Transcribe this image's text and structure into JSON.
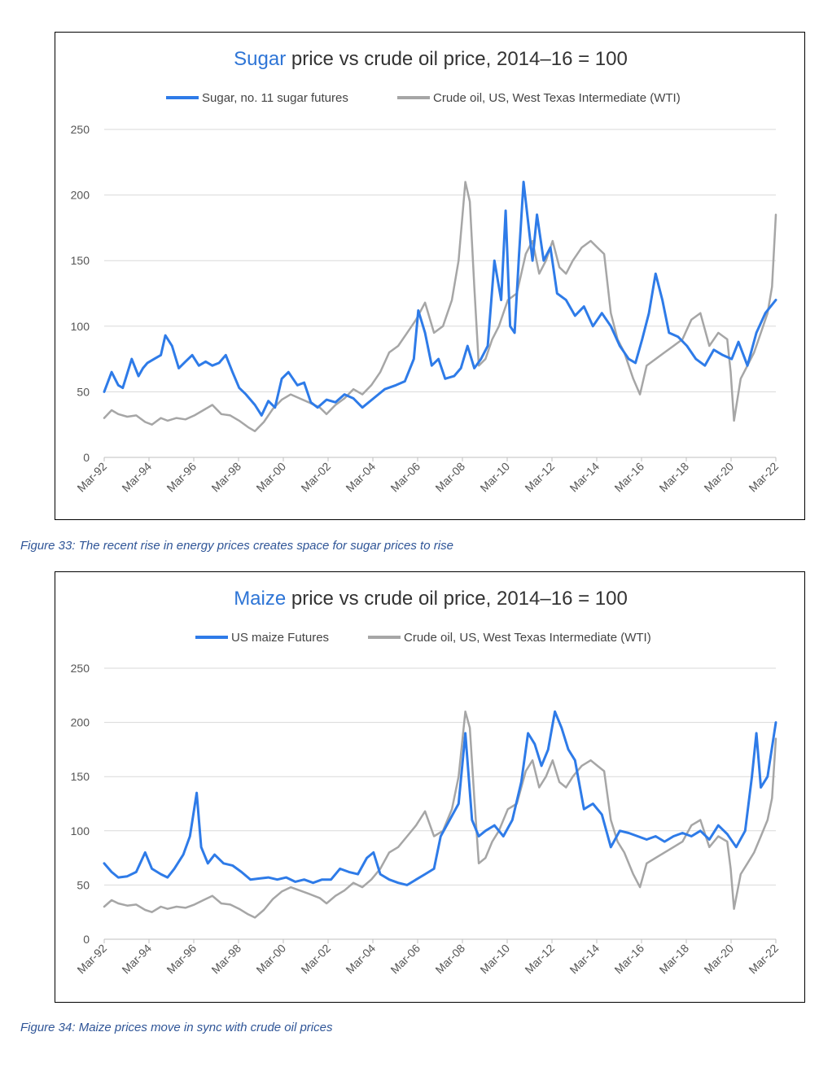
{
  "chart_data": [
    {
      "type": "line",
      "title_highlight": "Sugar",
      "title_rest": " price vs crude oil price, 2014–16 = 100",
      "ylim": [
        0,
        250
      ],
      "yticks": [
        0,
        50,
        100,
        150,
        200,
        250
      ],
      "xlim": [
        1992.17,
        2022.17
      ],
      "xticks": [
        "Mar-92",
        "Mar-94",
        "Mar-96",
        "Mar-98",
        "Mar-00",
        "Mar-02",
        "Mar-04",
        "Mar-06",
        "Mar-08",
        "Mar-10",
        "Mar-12",
        "Mar-14",
        "Mar-16",
        "Mar-18",
        "Mar-20",
        "Mar-22"
      ],
      "grid": true,
      "legend_position": "top",
      "series": [
        {
          "name": "Sugar, no. 11 sugar futures",
          "color": "#2e7be8",
          "x": [
            1992.17,
            1992.5,
            1992.8,
            1993.0,
            1993.4,
            1993.7,
            1993.9,
            1994.1,
            1994.4,
            1994.7,
            1994.9,
            1995.2,
            1995.5,
            1995.8,
            1996.1,
            1996.4,
            1996.7,
            1997.0,
            1997.3,
            1997.6,
            1997.9,
            1998.2,
            1998.5,
            1998.9,
            1999.2,
            1999.5,
            1999.8,
            2000.1,
            2000.4,
            2000.8,
            2001.1,
            2001.4,
            2001.7,
            2002.1,
            2002.5,
            2002.9,
            2003.3,
            2003.7,
            2004.2,
            2004.7,
            2005.2,
            2005.6,
            2006.0,
            2006.2,
            2006.5,
            2006.8,
            2007.1,
            2007.4,
            2007.8,
            2008.1,
            2008.4,
            2008.7,
            2009.0,
            2009.3,
            2009.6,
            2009.9,
            2010.1,
            2010.3,
            2010.5,
            2010.7,
            2010.9,
            2011.1,
            2011.3,
            2011.5,
            2011.8,
            2012.1,
            2012.4,
            2012.8,
            2013.2,
            2013.6,
            2014.0,
            2014.4,
            2014.8,
            2015.2,
            2015.6,
            2015.9,
            2016.2,
            2016.5,
            2016.8,
            2017.1,
            2017.4,
            2017.8,
            2018.2,
            2018.6,
            2019.0,
            2019.4,
            2019.8,
            2020.2,
            2020.5,
            2020.9,
            2021.3,
            2021.7,
            2022.17
          ],
          "values": [
            50,
            65,
            55,
            53,
            75,
            62,
            68,
            72,
            75,
            78,
            93,
            85,
            68,
            73,
            78,
            70,
            73,
            70,
            72,
            78,
            65,
            53,
            48,
            40,
            32,
            43,
            38,
            60,
            65,
            55,
            57,
            42,
            38,
            44,
            42,
            48,
            45,
            38,
            45,
            52,
            55,
            58,
            75,
            112,
            95,
            70,
            75,
            60,
            62,
            68,
            85,
            68,
            75,
            85,
            150,
            120,
            188,
            100,
            95,
            155,
            210,
            180,
            150,
            185,
            150,
            160,
            125,
            120,
            108,
            115,
            100,
            110,
            100,
            85,
            75,
            72,
            90,
            110,
            140,
            120,
            95,
            92,
            85,
            75,
            70,
            82,
            78,
            75,
            88,
            70,
            95,
            110,
            120
          ]
        },
        {
          "name": "Crude oil, US, West Texas Intermediate (WTI)",
          "color": "#a6a6a6",
          "x": [
            1992.17,
            1992.5,
            1992.8,
            1993.2,
            1993.6,
            1994.0,
            1994.3,
            1994.7,
            1995.0,
            1995.4,
            1995.8,
            1996.2,
            1996.6,
            1997.0,
            1997.4,
            1997.8,
            1998.2,
            1998.6,
            1998.9,
            1999.3,
            1999.7,
            2000.1,
            2000.5,
            2000.9,
            2001.3,
            2001.8,
            2002.1,
            2002.5,
            2002.9,
            2003.3,
            2003.7,
            2004.1,
            2004.5,
            2004.9,
            2005.3,
            2005.7,
            2006.1,
            2006.5,
            2006.9,
            2007.3,
            2007.7,
            2008.0,
            2008.3,
            2008.5,
            2008.7,
            2008.9,
            2009.2,
            2009.5,
            2009.8,
            2010.2,
            2010.6,
            2011.0,
            2011.3,
            2011.6,
            2011.9,
            2012.2,
            2012.5,
            2012.8,
            2013.1,
            2013.5,
            2013.9,
            2014.2,
            2014.5,
            2014.8,
            2015.1,
            2015.4,
            2015.8,
            2016.1,
            2016.4,
            2016.8,
            2017.2,
            2017.6,
            2018.0,
            2018.4,
            2018.8,
            2019.2,
            2019.6,
            2020.0,
            2020.15,
            2020.3,
            2020.6,
            2020.9,
            2021.2,
            2021.5,
            2021.8,
            2022.0,
            2022.17
          ],
          "values": [
            30,
            36,
            33,
            31,
            32,
            27,
            25,
            30,
            28,
            30,
            29,
            32,
            36,
            40,
            33,
            32,
            28,
            23,
            20,
            27,
            37,
            44,
            48,
            45,
            42,
            38,
            33,
            40,
            45,
            52,
            48,
            55,
            65,
            80,
            85,
            95,
            105,
            118,
            95,
            100,
            120,
            150,
            210,
            195,
            130,
            70,
            75,
            90,
            100,
            120,
            125,
            155,
            165,
            140,
            150,
            165,
            145,
            140,
            150,
            160,
            165,
            160,
            155,
            110,
            90,
            80,
            60,
            48,
            70,
            75,
            80,
            85,
            90,
            105,
            110,
            85,
            95,
            90,
            65,
            28,
            60,
            70,
            80,
            95,
            110,
            130,
            185
          ]
        }
      ]
    },
    {
      "type": "line",
      "title_highlight": "Maize",
      "title_rest": " price vs crude oil price, 2014–16 = 100",
      "ylim": [
        0,
        250
      ],
      "yticks": [
        0,
        50,
        100,
        150,
        200,
        250
      ],
      "xlim": [
        1992.17,
        2022.17
      ],
      "xticks": [
        "Mar-92",
        "Mar-94",
        "Mar-96",
        "Mar-98",
        "Mar-00",
        "Mar-02",
        "Mar-04",
        "Mar-06",
        "Mar-08",
        "Mar-10",
        "Mar-12",
        "Mar-14",
        "Mar-16",
        "Mar-18",
        "Mar-20",
        "Mar-22"
      ],
      "grid": true,
      "legend_position": "top",
      "series": [
        {
          "name": "US maize Futures",
          "color": "#2e7be8",
          "x": [
            1992.17,
            1992.5,
            1992.8,
            1993.2,
            1993.6,
            1994.0,
            1994.3,
            1994.7,
            1995.0,
            1995.3,
            1995.7,
            1996.0,
            1996.3,
            1996.5,
            1996.8,
            1997.1,
            1997.5,
            1997.9,
            1998.3,
            1998.7,
            1999.1,
            1999.5,
            1999.9,
            2000.3,
            2000.7,
            2001.1,
            2001.5,
            2001.9,
            2002.3,
            2002.7,
            2003.1,
            2003.5,
            2003.9,
            2004.2,
            2004.5,
            2004.9,
            2005.3,
            2005.7,
            2006.1,
            2006.5,
            2006.9,
            2007.2,
            2007.6,
            2008.0,
            2008.3,
            2008.6,
            2008.9,
            2009.2,
            2009.6,
            2010.0,
            2010.4,
            2010.8,
            2011.1,
            2011.4,
            2011.7,
            2012.0,
            2012.3,
            2012.6,
            2012.9,
            2013.2,
            2013.6,
            2014.0,
            2014.4,
            2014.8,
            2015.2,
            2015.6,
            2016.0,
            2016.4,
            2016.8,
            2017.2,
            2017.6,
            2018.0,
            2018.4,
            2018.8,
            2019.2,
            2019.6,
            2020.0,
            2020.4,
            2020.8,
            2021.1,
            2021.3,
            2021.5,
            2021.8,
            2022.17
          ],
          "values": [
            70,
            62,
            57,
            58,
            62,
            80,
            65,
            60,
            57,
            65,
            78,
            95,
            135,
            85,
            70,
            78,
            70,
            68,
            62,
            55,
            56,
            57,
            55,
            57,
            53,
            55,
            52,
            55,
            55,
            65,
            62,
            60,
            75,
            80,
            60,
            55,
            52,
            50,
            55,
            60,
            65,
            95,
            110,
            125,
            190,
            110,
            95,
            100,
            105,
            95,
            110,
            145,
            190,
            180,
            160,
            175,
            210,
            195,
            175,
            165,
            120,
            125,
            115,
            85,
            100,
            98,
            95,
            92,
            95,
            90,
            95,
            98,
            95,
            100,
            92,
            105,
            97,
            85,
            100,
            150,
            190,
            140,
            150,
            200
          ]
        },
        {
          "name": "Crude oil, US, West Texas Intermediate (WTI)",
          "color": "#a6a6a6",
          "x": [
            1992.17,
            1992.5,
            1992.8,
            1993.2,
            1993.6,
            1994.0,
            1994.3,
            1994.7,
            1995.0,
            1995.4,
            1995.8,
            1996.2,
            1996.6,
            1997.0,
            1997.4,
            1997.8,
            1998.2,
            1998.6,
            1998.9,
            1999.3,
            1999.7,
            2000.1,
            2000.5,
            2000.9,
            2001.3,
            2001.8,
            2002.1,
            2002.5,
            2002.9,
            2003.3,
            2003.7,
            2004.1,
            2004.5,
            2004.9,
            2005.3,
            2005.7,
            2006.1,
            2006.5,
            2006.9,
            2007.3,
            2007.7,
            2008.0,
            2008.3,
            2008.5,
            2008.7,
            2008.9,
            2009.2,
            2009.5,
            2009.8,
            2010.2,
            2010.6,
            2011.0,
            2011.3,
            2011.6,
            2011.9,
            2012.2,
            2012.5,
            2012.8,
            2013.1,
            2013.5,
            2013.9,
            2014.2,
            2014.5,
            2014.8,
            2015.1,
            2015.4,
            2015.8,
            2016.1,
            2016.4,
            2016.8,
            2017.2,
            2017.6,
            2018.0,
            2018.4,
            2018.8,
            2019.2,
            2019.6,
            2020.0,
            2020.15,
            2020.3,
            2020.6,
            2020.9,
            2021.2,
            2021.5,
            2021.8,
            2022.0,
            2022.17
          ],
          "values": [
            30,
            36,
            33,
            31,
            32,
            27,
            25,
            30,
            28,
            30,
            29,
            32,
            36,
            40,
            33,
            32,
            28,
            23,
            20,
            27,
            37,
            44,
            48,
            45,
            42,
            38,
            33,
            40,
            45,
            52,
            48,
            55,
            65,
            80,
            85,
            95,
            105,
            118,
            95,
            100,
            120,
            150,
            210,
            195,
            130,
            70,
            75,
            90,
            100,
            120,
            125,
            155,
            165,
            140,
            150,
            165,
            145,
            140,
            150,
            160,
            165,
            160,
            155,
            110,
            90,
            80,
            60,
            48,
            70,
            75,
            80,
            85,
            90,
            105,
            110,
            85,
            95,
            90,
            65,
            28,
            60,
            70,
            80,
            95,
            110,
            130,
            185
          ]
        }
      ]
    }
  ],
  "captions": {
    "figure33": "Figure 33: The recent rise in energy prices creates space for sugar prices to rise",
    "figure34": "Figure 34: Maize prices move in sync with crude oil prices"
  }
}
